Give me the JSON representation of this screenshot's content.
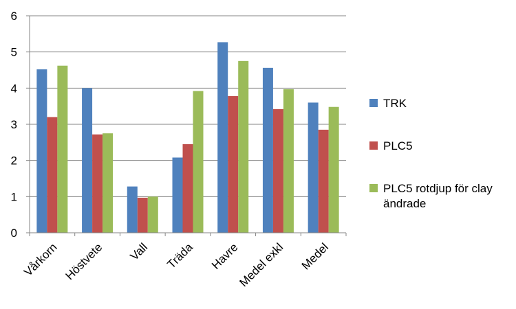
{
  "chart_data": {
    "type": "bar",
    "categories": [
      "Vårkorn",
      "Höstvete",
      "Vall",
      "Träda",
      "Havre",
      "Medel exkl",
      "Medel"
    ],
    "series": [
      {
        "name": "TRK",
        "color": "#4F81BD",
        "values": [
          4.52,
          4.0,
          1.28,
          2.08,
          5.27,
          4.56,
          3.6
        ]
      },
      {
        "name": "PLC5",
        "color": "#C0504D",
        "values": [
          3.2,
          2.72,
          0.97,
          2.45,
          3.78,
          3.42,
          2.85
        ]
      },
      {
        "name": "PLC5 rotdjup för clay ändrade",
        "name_lines": [
          "PLC5 rotdjup för clay",
          "ändrade"
        ],
        "color": "#9BBB59",
        "values": [
          4.62,
          2.75,
          1.0,
          3.92,
          4.75,
          3.97,
          3.48
        ]
      }
    ],
    "yticks": [
      "0",
      "1",
      "2",
      "3",
      "4",
      "5",
      "6"
    ],
    "ylim": [
      0,
      6
    ],
    "title": "",
    "xlabel": "",
    "ylabel": "",
    "grid": true,
    "legend_position": "right"
  }
}
